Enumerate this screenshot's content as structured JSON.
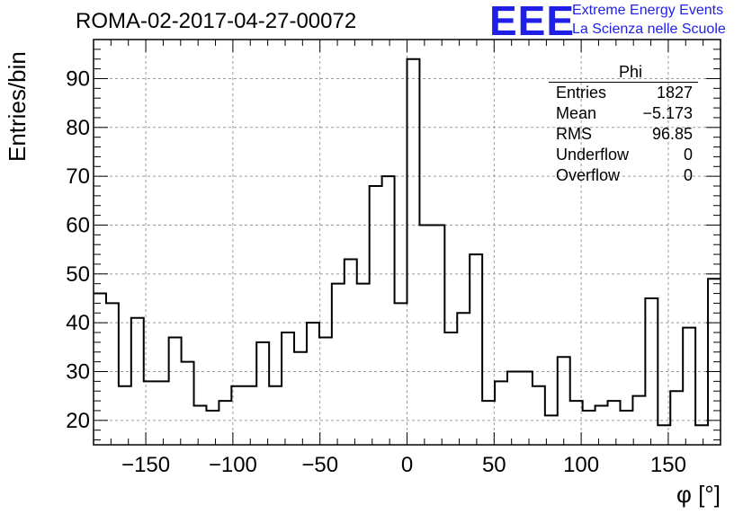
{
  "title": "ROMA-02-2017-04-27-00072",
  "logo": {
    "mark": "EEE",
    "line1": "Extreme Energy Events",
    "line2": "La Scienza nelle Scuole"
  },
  "stats": {
    "name": "Phi",
    "rows": [
      {
        "label": "Entries",
        "value": "1827"
      },
      {
        "label": "Mean",
        "value": "−5.173"
      },
      {
        "label": "RMS",
        "value": "96.85"
      },
      {
        "label": "Underflow",
        "value": "0"
      },
      {
        "label": "Overflow",
        "value": "0"
      }
    ]
  },
  "chart_data": {
    "type": "bar",
    "histogram": true,
    "title": "ROMA-02-2017-04-27-00072",
    "xlabel": "φ [°]",
    "ylabel": "Entries/bin",
    "xlim": [
      -180,
      180
    ],
    "ylim": [
      15,
      98
    ],
    "grid": true,
    "bin_width": 7.2,
    "values": [
      46,
      44,
      27,
      41,
      28,
      28,
      37,
      32,
      23,
      22,
      24,
      27,
      27,
      36,
      27,
      38,
      34,
      40,
      37,
      48,
      53,
      48,
      68,
      70,
      44,
      94,
      60,
      60,
      38,
      42,
      54,
      24,
      28,
      30,
      30,
      27,
      21,
      33,
      24,
      22,
      23,
      24,
      22,
      25,
      45,
      19,
      26,
      39,
      19,
      49
    ],
    "x_ticks": [
      -150,
      -100,
      -50,
      0,
      50,
      100,
      150
    ],
    "x_tick_labels": [
      "−150",
      "−100",
      "−50",
      "0",
      "50",
      "100",
      "150"
    ],
    "y_ticks": [
      20,
      30,
      40,
      50,
      60,
      70,
      80,
      90
    ],
    "y_tick_labels": [
      "20",
      "30",
      "40",
      "50",
      "60",
      "70",
      "80",
      "90"
    ]
  }
}
